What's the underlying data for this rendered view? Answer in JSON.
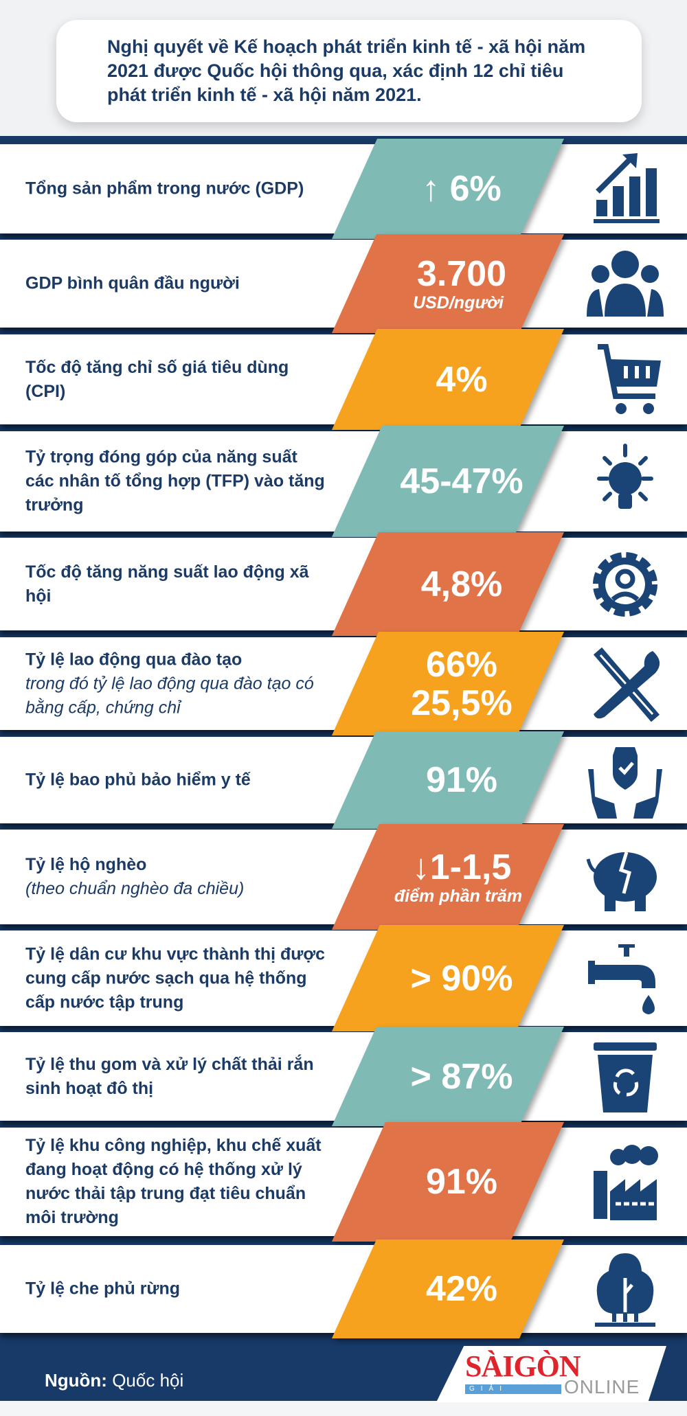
{
  "header": {
    "text": "Nghị quyết về Kế hoạch phát triển kinh tế - xã hội năm 2021 được Quốc hội thông qua, xác định 12 chỉ tiêu phát triển kinh tế - xã hội năm 2021."
  },
  "colors": {
    "navy": "#173a68",
    "text": "#1b3a66",
    "teal": "#7fbab5",
    "orange": "#e07448",
    "yellow": "#f6a21e",
    "logo_red": "#e0242b"
  },
  "indicators": [
    {
      "label": "Tổng sản phẩm trong nước (GDP)",
      "value": "↑ 6%",
      "color": "teal",
      "icon": "bar-chart-growth-icon"
    },
    {
      "label": "GDP bình quân đầu người",
      "value": "3.700",
      "sub": "USD/người",
      "color": "orange",
      "icon": "people-group-icon"
    },
    {
      "label": "Tốc độ tăng chỉ số giá tiêu dùng (CPI)",
      "value": "4%",
      "color": "yellow",
      "icon": "shopping-cart-icon"
    },
    {
      "label": "Tỷ trọng đóng góp của năng suất các nhân tố tổng hợp (TFP) vào tăng trưởng",
      "value": "45-47%",
      "color": "teal",
      "icon": "lightbulb-icon"
    },
    {
      "label": "Tốc độ tăng năng suất lao động xã hội",
      "value": "4,8%",
      "color": "orange",
      "icon": "gear-person-icon"
    },
    {
      "label": "Tỷ lệ lao động qua đào tạo",
      "italic": "trong đó tỷ lệ lao động qua đào tạo có bằng cấp, chứng chỉ",
      "value": "66%",
      "value2": "25,5%",
      "color": "yellow",
      "icon": "wrench-pencil-icon"
    },
    {
      "label": "Tỷ lệ bao phủ bảo hiểm y tế",
      "value": "91%",
      "color": "teal",
      "icon": "hands-shield-icon"
    },
    {
      "label": "Tỷ lệ hộ nghèo",
      "italic": "(theo chuẩn nghèo đa chiều)",
      "value": "↓1-1,5",
      "sub": "điểm phần trăm",
      "color": "orange",
      "icon": "broken-piggy-bank-icon"
    },
    {
      "label": "Tỷ lệ dân cư khu vực thành thị được cung cấp nước sạch qua hệ thống cấp nước tập trung",
      "value": "> 90%",
      "color": "yellow",
      "icon": "water-tap-icon"
    },
    {
      "label": "Tỷ lệ thu gom và xử lý chất thải rắn sinh hoạt đô thị",
      "value": "> 87%",
      "color": "teal",
      "icon": "recycle-bin-icon"
    },
    {
      "label": "Tỷ lệ khu công nghiệp, khu chế xuất đang hoạt động có hệ thống xử lý nước thải tập trung đạt tiêu chuẩn môi trường",
      "value": "91%",
      "color": "orange",
      "icon": "factory-icon"
    },
    {
      "label": "Tỷ lệ che phủ rừng",
      "value": "42%",
      "color": "yellow",
      "icon": "tree-icon"
    }
  ],
  "footer": {
    "source_label": "Nguồn:",
    "source_value": "Quốc hội",
    "logo_main": "SÀIGÒN",
    "logo_sub": "GIẢI PHÓNG",
    "logo_online": "ONLINE"
  }
}
